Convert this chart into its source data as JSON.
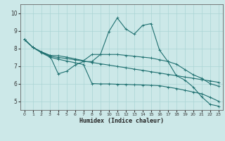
{
  "xlabel": "Humidex (Indice chaleur)",
  "background_color": "#cce8e8",
  "grid_color": "#aad4d4",
  "line_color": "#1f7070",
  "x_ticks": [
    0,
    1,
    2,
    3,
    4,
    5,
    6,
    7,
    8,
    9,
    10,
    11,
    12,
    13,
    14,
    15,
    16,
    17,
    18,
    19,
    20,
    21,
    22,
    23
  ],
  "y_ticks": [
    5,
    6,
    7,
    8,
    9,
    10
  ],
  "xlim": [
    -0.5,
    23.5
  ],
  "ylim": [
    4.5,
    10.5
  ],
  "line1_x": [
    0,
    1,
    2,
    3,
    4,
    5,
    6,
    7,
    8,
    9,
    10,
    11,
    12,
    13,
    14,
    15,
    16,
    17,
    18,
    19,
    20,
    21,
    22,
    23
  ],
  "line1_y": [
    8.5,
    8.05,
    7.8,
    7.6,
    6.55,
    6.7,
    7.05,
    7.25,
    7.25,
    7.65,
    8.95,
    9.72,
    9.1,
    8.8,
    9.3,
    9.4,
    7.9,
    7.25,
    6.45,
    6.2,
    5.8,
    5.25,
    4.82,
    4.72
  ],
  "line2_x": [
    0,
    1,
    2,
    3,
    4,
    5,
    6,
    7,
    8,
    9,
    10,
    11,
    12,
    13,
    14,
    15,
    16,
    17,
    18,
    19,
    20,
    21,
    22,
    23
  ],
  "line2_y": [
    8.5,
    8.05,
    7.8,
    7.6,
    7.58,
    7.5,
    7.4,
    7.3,
    7.65,
    7.65,
    7.65,
    7.65,
    7.6,
    7.55,
    7.5,
    7.45,
    7.35,
    7.25,
    7.1,
    6.8,
    6.5,
    6.3,
    6.0,
    5.85
  ],
  "line3_x": [
    0,
    1,
    2,
    3,
    4,
    5,
    6,
    7,
    8,
    9,
    10,
    11,
    12,
    13,
    14,
    15,
    16,
    17,
    18,
    19,
    20,
    21,
    22,
    23
  ],
  "line3_y": [
    8.5,
    8.05,
    7.77,
    7.55,
    7.48,
    7.42,
    7.35,
    7.27,
    7.2,
    7.12,
    7.05,
    6.97,
    6.9,
    6.82,
    6.75,
    6.67,
    6.6,
    6.52,
    6.45,
    6.37,
    6.3,
    6.22,
    6.15,
    6.07
  ],
  "line4_x": [
    0,
    1,
    2,
    3,
    4,
    5,
    6,
    7,
    8,
    9,
    10,
    11,
    12,
    13,
    14,
    15,
    16,
    17,
    18,
    19,
    20,
    21,
    22,
    23
  ],
  "line4_y": [
    8.5,
    8.05,
    7.75,
    7.5,
    7.38,
    7.28,
    7.18,
    7.08,
    6.0,
    5.98,
    5.98,
    5.96,
    5.95,
    5.93,
    5.92,
    5.9,
    5.88,
    5.8,
    5.72,
    5.62,
    5.52,
    5.42,
    5.22,
    5.0
  ],
  "marker_x1": [
    0,
    1,
    2,
    3,
    4,
    5,
    6,
    7,
    8,
    9,
    10,
    11,
    12,
    13,
    14,
    15,
    16,
    17,
    18,
    19,
    20,
    21,
    22,
    23
  ],
  "marker_x2": [
    0,
    1,
    2,
    3,
    9,
    10,
    11,
    12,
    13,
    14,
    15,
    16,
    17,
    18,
    19,
    20,
    21,
    22,
    23
  ],
  "marker_x3": [
    0,
    2,
    5,
    8,
    11,
    14,
    17,
    20,
    23
  ],
  "marker_x4": [
    0,
    2,
    5,
    8,
    11,
    14,
    17,
    20,
    23
  ]
}
